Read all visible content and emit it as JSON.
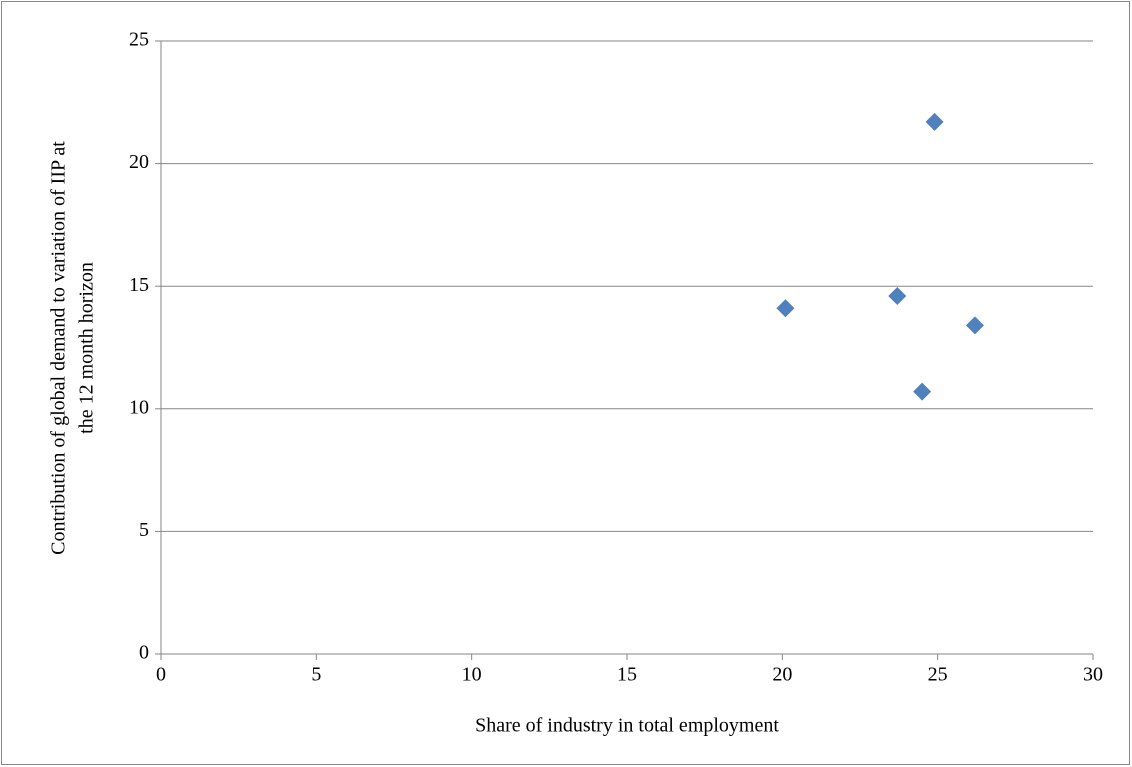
{
  "chart_data": {
    "type": "scatter",
    "x_label": "Share of industry in total employment",
    "y_label": [
      "Contribution of global demand to variation of IIP at",
      "the 12 month horizon"
    ],
    "series": [
      {
        "color": "#4f81bd",
        "x": [
          20.1,
          23.7,
          24.9,
          26.2,
          24.5
        ],
        "values": [
          14.1,
          14.6,
          21.7,
          13.4,
          10.7
        ]
      }
    ],
    "xlim": [
      0,
      30
    ],
    "xticks": [
      0,
      5,
      10,
      15,
      20,
      25,
      30
    ],
    "ylim": [
      0,
      25
    ],
    "yticks": [
      0,
      5,
      10,
      15,
      20,
      25
    ],
    "grid": true
  }
}
